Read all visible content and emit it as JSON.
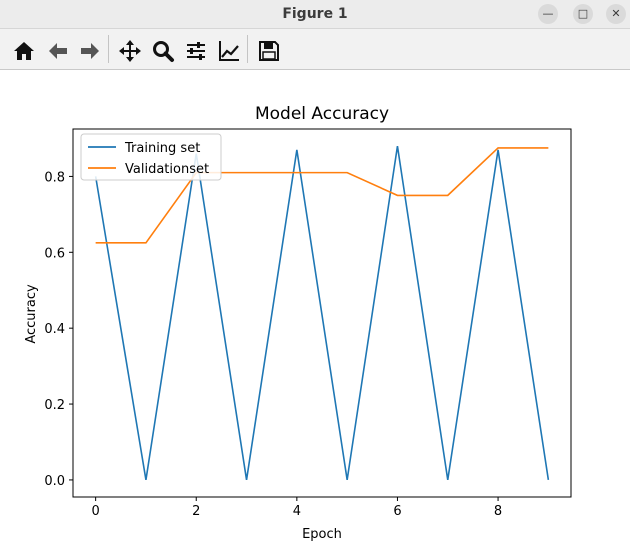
{
  "window": {
    "title": "Figure 1"
  },
  "toolbar": {
    "icons": [
      "home-icon",
      "back-arrow-icon",
      "forward-arrow-icon",
      "pan-icon",
      "zoom-icon",
      "configure-subplots-icon",
      "edit-axis-icon",
      "save-icon"
    ]
  },
  "colors": {
    "training": "#1f77b4",
    "validation": "#ff7f0e",
    "titlebar": "#ececec",
    "toolbar": "#f2f2f2"
  },
  "chart_data": {
    "type": "line",
    "title": "Model Accuracy",
    "xlabel": "Epoch",
    "ylabel": "Accuracy",
    "xlim": [
      -0.45,
      9.45
    ],
    "ylim": [
      -0.045,
      0.925
    ],
    "xticks": [
      0,
      2,
      4,
      6,
      8
    ],
    "xtick_labels": [
      "0",
      "2",
      "4",
      "6",
      "8"
    ],
    "yticks": [
      0.0,
      0.2,
      0.4,
      0.6,
      0.8
    ],
    "ytick_labels": [
      "0.0",
      "0.2",
      "0.4",
      "0.6",
      "0.8"
    ],
    "x": [
      0,
      1,
      2,
      3,
      4,
      5,
      6,
      7,
      8,
      9
    ],
    "series": [
      {
        "name": "Training set",
        "color": "#1f77b4",
        "values": [
          0.8,
          0.0,
          0.86,
          0.0,
          0.87,
          0.0,
          0.88,
          0.0,
          0.87,
          0.0
        ]
      },
      {
        "name": "Validationset",
        "color": "#ff7f0e",
        "values": [
          0.625,
          0.625,
          0.81,
          0.81,
          0.81,
          0.81,
          0.75,
          0.75,
          0.875,
          0.875
        ]
      }
    ],
    "legend_position": "top-left",
    "grid": false
  }
}
